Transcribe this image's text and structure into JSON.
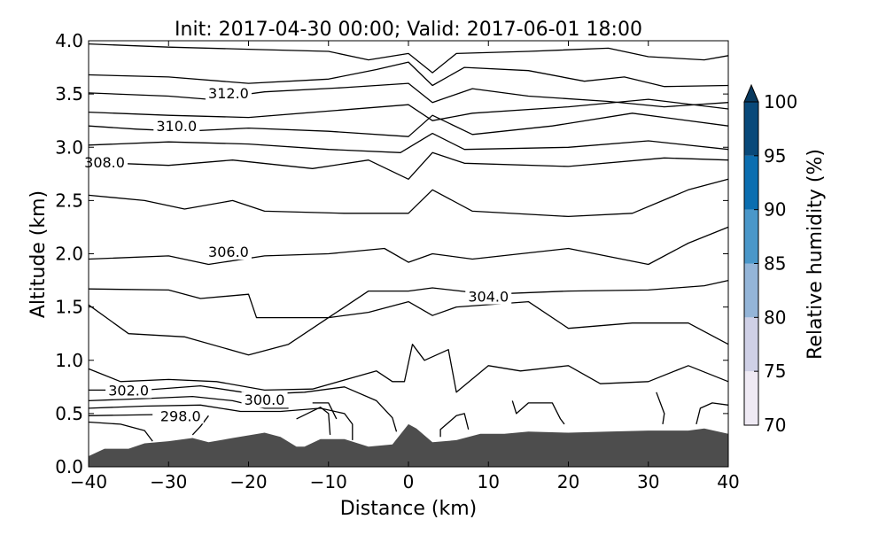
{
  "chart_data": {
    "type": "contour",
    "title": "Init: 2017-04-30 00:00; Valid: 2017-06-01 18:00",
    "xlabel": "Distance (km)",
    "ylabel": "Altitude (km)",
    "xlim": [
      -40,
      40
    ],
    "ylim": [
      0,
      4
    ],
    "xticks": [
      "−40",
      "−30",
      "−20",
      "−10",
      "0",
      "10",
      "20",
      "30",
      "40"
    ],
    "xtick_values": [
      -40,
      -30,
      -20,
      -10,
      0,
      10,
      20,
      30,
      40
    ],
    "yticks": [
      "0.0",
      "0.5",
      "1.0",
      "1.5",
      "2.0",
      "2.5",
      "3.0",
      "3.5",
      "4.0"
    ],
    "ytick_values": [
      0,
      0.5,
      1,
      1.5,
      2,
      2.5,
      3,
      3.5,
      4
    ],
    "terrain_color": "#4d4d4d",
    "terrain": [
      [
        -40,
        0.1
      ],
      [
        -38,
        0.17
      ],
      [
        -35,
        0.17
      ],
      [
        -33,
        0.22
      ],
      [
        -30,
        0.24
      ],
      [
        -27,
        0.27
      ],
      [
        -25,
        0.23
      ],
      [
        -22,
        0.27
      ],
      [
        -18,
        0.32
      ],
      [
        -16,
        0.28
      ],
      [
        -14,
        0.19
      ],
      [
        -13,
        0.19
      ],
      [
        -11,
        0.26
      ],
      [
        -8,
        0.26
      ],
      [
        -5,
        0.19
      ],
      [
        -2,
        0.21
      ],
      [
        0,
        0.4
      ],
      [
        1,
        0.36
      ],
      [
        3,
        0.23
      ],
      [
        6,
        0.25
      ],
      [
        9,
        0.31
      ],
      [
        12,
        0.31
      ],
      [
        15,
        0.33
      ],
      [
        20,
        0.32
      ],
      [
        25,
        0.33
      ],
      [
        30,
        0.34
      ],
      [
        35,
        0.34
      ],
      [
        37,
        0.36
      ],
      [
        40,
        0.31
      ]
    ],
    "contours": [
      [
        [
          -40,
          3.97
        ],
        [
          -30,
          3.94
        ],
        [
          -20,
          3.92
        ],
        [
          -10,
          3.9
        ],
        [
          -5,
          3.82
        ],
        [
          0,
          3.88
        ],
        [
          3,
          3.7
        ],
        [
          6,
          3.88
        ],
        [
          15,
          3.9
        ],
        [
          25,
          3.93
        ],
        [
          30,
          3.85
        ],
        [
          37,
          3.82
        ],
        [
          40,
          3.86
        ]
      ],
      [
        [
          -40,
          3.68
        ],
        [
          -30,
          3.66
        ],
        [
          -20,
          3.6
        ],
        [
          -10,
          3.64
        ],
        [
          -4,
          3.73
        ],
        [
          0,
          3.8
        ],
        [
          3,
          3.58
        ],
        [
          7,
          3.75
        ],
        [
          15,
          3.72
        ],
        [
          22,
          3.62
        ],
        [
          27,
          3.66
        ],
        [
          32,
          3.57
        ],
        [
          40,
          3.58
        ]
      ],
      [
        [
          -40,
          3.51
        ],
        [
          -30,
          3.48
        ],
        [
          -25,
          3.45
        ],
        [
          -18,
          3.52
        ],
        [
          -8,
          3.56
        ],
        [
          0,
          3.6
        ],
        [
          3,
          3.42
        ],
        [
          8,
          3.55
        ],
        [
          15,
          3.48
        ],
        [
          25,
          3.43
        ],
        [
          32,
          3.38
        ],
        [
          40,
          3.42
        ]
      ],
      [
        [
          -40,
          3.33
        ],
        [
          -30,
          3.3
        ],
        [
          -20,
          3.28
        ],
        [
          -10,
          3.34
        ],
        [
          0,
          3.4
        ],
        [
          3,
          3.25
        ],
        [
          8,
          3.32
        ],
        [
          20,
          3.38
        ],
        [
          30,
          3.45
        ],
        [
          40,
          3.36
        ]
      ],
      [
        [
          -40,
          3.2
        ],
        [
          -34,
          3.17
        ],
        [
          -28,
          3.15
        ],
        [
          -20,
          3.18
        ],
        [
          -10,
          3.15
        ],
        [
          0,
          3.1
        ],
        [
          3,
          3.3
        ],
        [
          8,
          3.12
        ],
        [
          18,
          3.2
        ],
        [
          28,
          3.32
        ],
        [
          40,
          3.2
        ]
      ],
      [
        [
          -40,
          3.02
        ],
        [
          -30,
          3.05
        ],
        [
          -20,
          3.03
        ],
        [
          -10,
          2.98
        ],
        [
          -1,
          2.95
        ],
        [
          3,
          3.13
        ],
        [
          7,
          2.98
        ],
        [
          20,
          3.0
        ],
        [
          30,
          3.06
        ],
        [
          40,
          2.98
        ]
      ],
      [
        [
          -40,
          2.86
        ],
        [
          -30,
          2.83
        ],
        [
          -22,
          2.88
        ],
        [
          -12,
          2.8
        ],
        [
          -5,
          2.88
        ],
        [
          0,
          2.7
        ],
        [
          3,
          2.95
        ],
        [
          7,
          2.85
        ],
        [
          20,
          2.82
        ],
        [
          32,
          2.9
        ],
        [
          40,
          2.88
        ]
      ],
      [
        [
          -40,
          2.55
        ],
        [
          -33,
          2.5
        ],
        [
          -28,
          2.42
        ],
        [
          -22,
          2.5
        ],
        [
          -18,
          2.4
        ],
        [
          -8,
          2.38
        ],
        [
          0,
          2.38
        ],
        [
          3,
          2.6
        ],
        [
          8,
          2.4
        ],
        [
          20,
          2.35
        ],
        [
          28,
          2.38
        ],
        [
          35,
          2.6
        ],
        [
          40,
          2.7
        ]
      ],
      [
        [
          -40,
          1.95
        ],
        [
          -30,
          1.98
        ],
        [
          -25,
          1.9
        ],
        [
          -18,
          1.98
        ],
        [
          -10,
          2.0
        ],
        [
          -3,
          2.05
        ],
        [
          0,
          1.92
        ],
        [
          3,
          2.0
        ],
        [
          8,
          1.95
        ],
        [
          20,
          2.05
        ],
        [
          30,
          1.9
        ],
        [
          35,
          2.1
        ],
        [
          40,
          2.25
        ]
      ],
      [
        [
          -40,
          1.67
        ],
        [
          -30,
          1.66
        ],
        [
          -26,
          1.58
        ],
        [
          -20,
          1.62
        ],
        [
          -19,
          1.4
        ],
        [
          -10,
          1.4
        ],
        [
          -5,
          1.65
        ],
        [
          0,
          1.65
        ],
        [
          3,
          1.68
        ],
        [
          10,
          1.62
        ],
        [
          20,
          1.65
        ],
        [
          30,
          1.66
        ],
        [
          37,
          1.7
        ],
        [
          40,
          1.75
        ]
      ],
      [
        [
          -40,
          1.52
        ],
        [
          -35,
          1.25
        ],
        [
          -28,
          1.22
        ],
        [
          -20,
          1.05
        ],
        [
          -15,
          1.15
        ],
        [
          -10,
          1.4
        ],
        [
          -5,
          1.45
        ],
        [
          0,
          1.55
        ],
        [
          3,
          1.42
        ],
        [
          6,
          1.5
        ],
        [
          15,
          1.55
        ],
        [
          20,
          1.3
        ],
        [
          28,
          1.35
        ],
        [
          35,
          1.35
        ],
        [
          40,
          1.15
        ]
      ],
      [
        [
          -40,
          0.92
        ],
        [
          -36,
          0.8
        ],
        [
          -30,
          0.82
        ],
        [
          -24,
          0.8
        ],
        [
          -18,
          0.72
        ],
        [
          -12,
          0.73
        ],
        [
          -4,
          0.9
        ],
        [
          -2,
          0.8
        ],
        [
          -0.5,
          0.8
        ],
        [
          0.5,
          1.15
        ],
        [
          2,
          1.0
        ],
        [
          5,
          1.1
        ],
        [
          6,
          0.7
        ],
        [
          10,
          0.95
        ],
        [
          14,
          0.9
        ],
        [
          20,
          0.95
        ],
        [
          24,
          0.78
        ],
        [
          30,
          0.8
        ],
        [
          35,
          0.95
        ],
        [
          40,
          0.8
        ]
      ],
      [
        [
          -40,
          0.72
        ],
        [
          -33,
          0.72
        ],
        [
          -26,
          0.76
        ],
        [
          -19,
          0.68
        ],
        [
          -13,
          0.7
        ],
        [
          -8,
          0.75
        ],
        [
          -4,
          0.62
        ],
        [
          -2,
          0.46
        ],
        [
          -1.5,
          0.33
        ]
      ],
      [
        [
          -40,
          0.62
        ],
        [
          -33,
          0.64
        ],
        [
          -27,
          0.66
        ],
        [
          -22,
          0.62
        ],
        [
          -18,
          0.55
        ],
        [
          -15,
          0.55
        ]
      ],
      [
        [
          -40,
          0.55
        ],
        [
          -33,
          0.57
        ],
        [
          -26,
          0.58
        ],
        [
          -21,
          0.52
        ],
        [
          -16,
          0.52
        ],
        [
          -11,
          0.55
        ],
        [
          -8,
          0.5
        ],
        [
          -7,
          0.4
        ],
        [
          -7,
          0.25
        ]
      ],
      [
        [
          -40,
          0.48
        ],
        [
          -32,
          0.49
        ]
      ],
      [
        [
          -40,
          0.42
        ],
        [
          -36,
          0.4
        ],
        [
          -33,
          0.34
        ],
        [
          -32,
          0.24
        ]
      ],
      [
        [
          -14,
          0.45
        ],
        [
          -11,
          0.56
        ],
        [
          -10,
          0.5
        ],
        [
          -9.8,
          0.3
        ]
      ],
      [
        [
          4,
          0.28
        ],
        [
          4,
          0.35
        ],
        [
          6,
          0.48
        ],
        [
          7,
          0.5
        ],
        [
          7.5,
          0.35
        ]
      ],
      [
        [
          13,
          0.62
        ],
        [
          13.5,
          0.5
        ],
        [
          15,
          0.6
        ],
        [
          18,
          0.6
        ],
        [
          19,
          0.45
        ],
        [
          19.5,
          0.4
        ]
      ],
      [
        [
          31,
          0.7
        ],
        [
          32,
          0.5
        ],
        [
          31.8,
          0.4
        ]
      ],
      [
        [
          36,
          0.4
        ],
        [
          36.5,
          0.55
        ],
        [
          38,
          0.6
        ],
        [
          40,
          0.58
        ]
      ],
      [
        [
          -27,
          0.3
        ],
        [
          -26,
          0.38
        ],
        [
          -25,
          0.48
        ]
      ],
      [
        [
          -12,
          0.6
        ],
        [
          -10,
          0.6
        ],
        [
          -9,
          0.45
        ]
      ]
    ],
    "contour_labels": [
      {
        "text": "312.0",
        "x": -22.5,
        "y": 3.51
      },
      {
        "text": "310.0",
        "x": -29,
        "y": 3.2
      },
      {
        "text": "308.0",
        "x": -38,
        "y": 2.86
      },
      {
        "text": "306.0",
        "x": -22.5,
        "y": 2.02
      },
      {
        "text": "304.0",
        "x": 10,
        "y": 1.6
      },
      {
        "text": "302.0",
        "x": -35,
        "y": 0.72
      },
      {
        "text": "300.0",
        "x": -18,
        "y": 0.63
      },
      {
        "text": "298.0",
        "x": -28.5,
        "y": 0.48
      }
    ],
    "colorbar": {
      "label": "Relative humidity (%)",
      "ticks": [
        "70",
        "75",
        "80",
        "85",
        "90",
        "95",
        "100"
      ],
      "levels": [
        70,
        75,
        80,
        85,
        90,
        95,
        100
      ],
      "colors": [
        "#efeaf4",
        "#cfd0e6",
        "#94b5d8",
        "#4a97c9",
        "#0b6eb0",
        "#08497a"
      ],
      "extend": "max",
      "extend_color": "#08395e"
    }
  }
}
